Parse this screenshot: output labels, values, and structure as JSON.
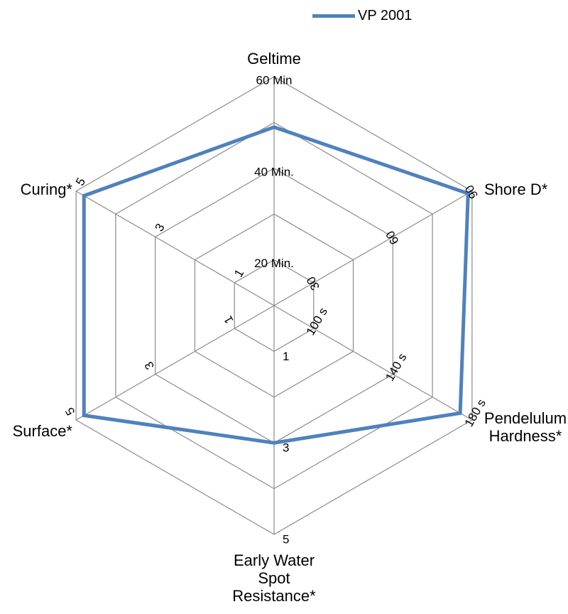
{
  "chart_data": {
    "type": "radar",
    "axes": [
      {
        "label_lines": [
          "Geltime"
        ],
        "ticks": [
          "20 Min.",
          "40 Min.",
          "60 Min"
        ],
        "max": 60
      },
      {
        "label_lines": [
          "Shore D*"
        ],
        "ticks": [
          "30",
          "60",
          "90"
        ],
        "max": 90
      },
      {
        "label_lines": [
          "Pendelulum",
          "Hardness*"
        ],
        "ticks": [
          "100 s",
          "140 s",
          "180 s"
        ],
        "max": 180
      },
      {
        "label_lines": [
          "Early Water",
          "Spot",
          "Resistance*"
        ],
        "ticks": [
          "1",
          "3",
          "5"
        ],
        "max": 5
      },
      {
        "label_lines": [
          "Surface*"
        ],
        "ticks": [
          "1",
          "3",
          "5"
        ],
        "max": 5
      },
      {
        "label_lines": [
          "Curing*"
        ],
        "ticks": [
          "1",
          "3",
          "5"
        ],
        "max": 5
      }
    ],
    "grid_levels": 5,
    "grid": true,
    "legend_position": "top",
    "series": [
      {
        "name": "VP 2001",
        "color": "#4F81BD",
        "values": [
          47,
          88,
          168,
          3,
          4.8,
          4.8
        ],
        "fractions": [
          0.78,
          0.98,
          0.94,
          0.6,
          0.96,
          0.96
        ]
      }
    ]
  }
}
